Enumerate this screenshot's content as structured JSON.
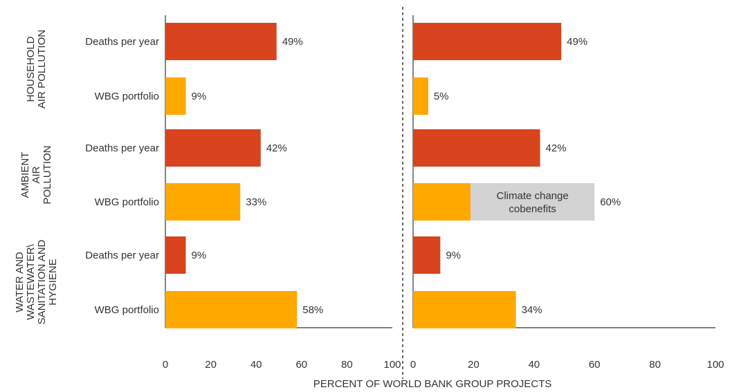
{
  "colors": {
    "deaths": "#D9441E",
    "portfolio": "#FFA800",
    "cobenefits": "#D3D3D3",
    "axis": "#333333",
    "divider": "#333333"
  },
  "chart_data": {
    "type": "bar",
    "orientation": "horizontal",
    "xlabel": "PERCENT OF WORLD BANK GROUP PROJECTS",
    "xlim": [
      0,
      100
    ],
    "xticks": [
      "0",
      "20",
      "40",
      "60",
      "80",
      "100"
    ],
    "groups": [
      {
        "label_lines": [
          "HOUSEHOLD",
          "AIR POLLUTION"
        ]
      },
      {
        "label_lines": [
          "AMBIENT",
          "AIR",
          "POLLUTION"
        ]
      },
      {
        "label_lines": [
          "WATER AND",
          "WASTEWATER\\",
          "SANITATION AND",
          "HYGIENE"
        ]
      }
    ],
    "categories": [
      "Deaths per year",
      "WBG portfolio",
      "Deaths per year",
      "WBG portfolio",
      "Deaths per year",
      "WBG portfolio"
    ],
    "panels": [
      {
        "values": [
          49,
          9,
          42,
          33,
          9,
          58
        ],
        "labels": [
          "49%",
          "9%",
          "42%",
          "33%",
          "9%",
          "58%"
        ]
      },
      {
        "values": [
          49,
          5,
          42,
          60,
          9,
          34
        ],
        "labels": [
          "49%",
          "5%",
          "42%",
          "60%",
          "9%",
          "34%"
        ],
        "stack": {
          "row": 3,
          "base": 19,
          "total": 60,
          "label_lines": [
            "Climate change",
            "cobenefits"
          ]
        }
      }
    ]
  }
}
